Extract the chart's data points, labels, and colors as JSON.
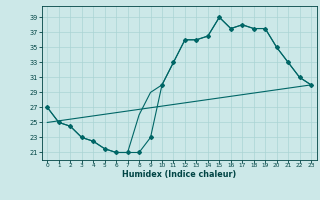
{
  "xlabel": "Humidex (Indice chaleur)",
  "xlim": [
    -0.5,
    23.5
  ],
  "ylim": [
    20.0,
    40.5
  ],
  "yticks": [
    21,
    23,
    25,
    27,
    29,
    31,
    33,
    35,
    37,
    39
  ],
  "xticks": [
    0,
    1,
    2,
    3,
    4,
    5,
    6,
    7,
    8,
    9,
    10,
    11,
    12,
    13,
    14,
    15,
    16,
    17,
    18,
    19,
    20,
    21,
    22,
    23
  ],
  "bg_color": "#cce8e8",
  "line_color": "#006666",
  "grid_color": "#aad4d4",
  "font_color": "#004444",
  "line1_x": [
    0,
    1,
    2,
    3,
    4,
    5,
    6,
    7,
    8,
    9,
    10,
    11,
    12,
    13,
    14,
    15,
    16,
    17,
    18,
    19,
    20,
    21,
    22,
    23
  ],
  "line1_y": [
    27,
    25,
    24.5,
    23,
    22.5,
    21.5,
    21,
    21,
    21,
    23,
    30,
    33,
    36,
    36,
    36.5,
    39,
    37.5,
    38,
    37.5,
    37.5,
    35,
    33,
    31,
    30
  ],
  "line2_x": [
    0,
    1,
    2,
    3,
    4,
    5,
    6,
    7,
    8,
    9,
    10,
    11,
    12,
    13,
    14,
    15,
    16,
    17,
    18,
    19,
    20,
    21,
    22,
    23
  ],
  "line2_y": [
    27,
    25,
    24.5,
    23,
    22.5,
    21.5,
    21,
    21,
    26,
    29,
    30,
    33,
    36,
    36,
    36.5,
    39,
    37.5,
    38,
    37.5,
    37.5,
    35,
    33,
    31,
    30
  ],
  "line3_x": [
    0,
    23
  ],
  "line3_y": [
    25,
    30
  ]
}
